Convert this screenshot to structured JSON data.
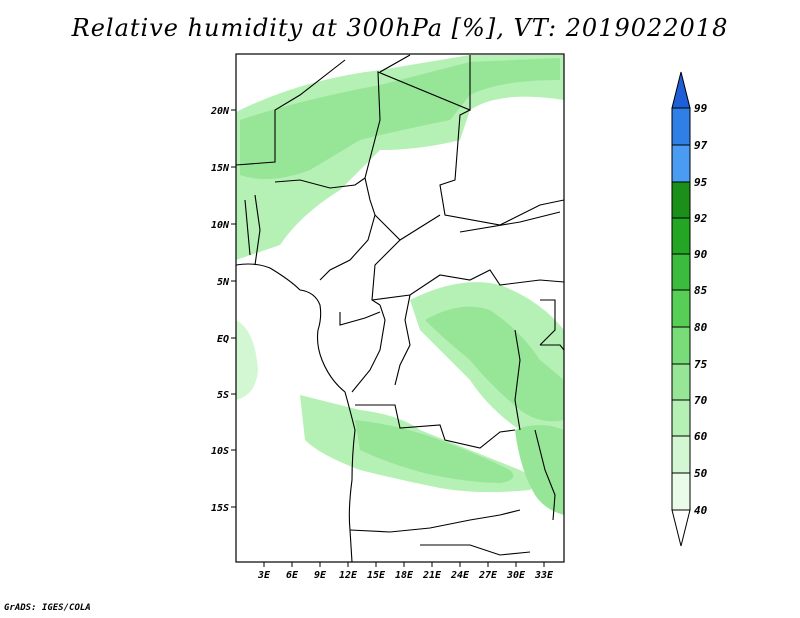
{
  "title": "Relative humidity at 300hPa [%], VT: 2019022018",
  "credit": "GrADS: IGES/COLA",
  "map": {
    "lat_labels": [
      "20N",
      "15N",
      "10N",
      "5N",
      "EQ",
      "5S",
      "10S",
      "15S"
    ],
    "lon_labels": [
      "3E",
      "6E",
      "9E",
      "12E",
      "15E",
      "18E",
      "21E",
      "24E",
      "27E",
      "30E",
      "33E"
    ]
  },
  "colorbar": {
    "levels": [
      "99",
      "97",
      "95",
      "92",
      "90",
      "85",
      "80",
      "75",
      "70",
      "60",
      "50",
      "40"
    ],
    "colors": [
      "#1e5fd8",
      "#2e7fe6",
      "#4a9cf2",
      "#1a8f1a",
      "#23a623",
      "#3cbc3c",
      "#57cf57",
      "#78dc78",
      "#97e697",
      "#b5f0b5",
      "#d2f7d2",
      "#eafbea"
    ]
  }
}
